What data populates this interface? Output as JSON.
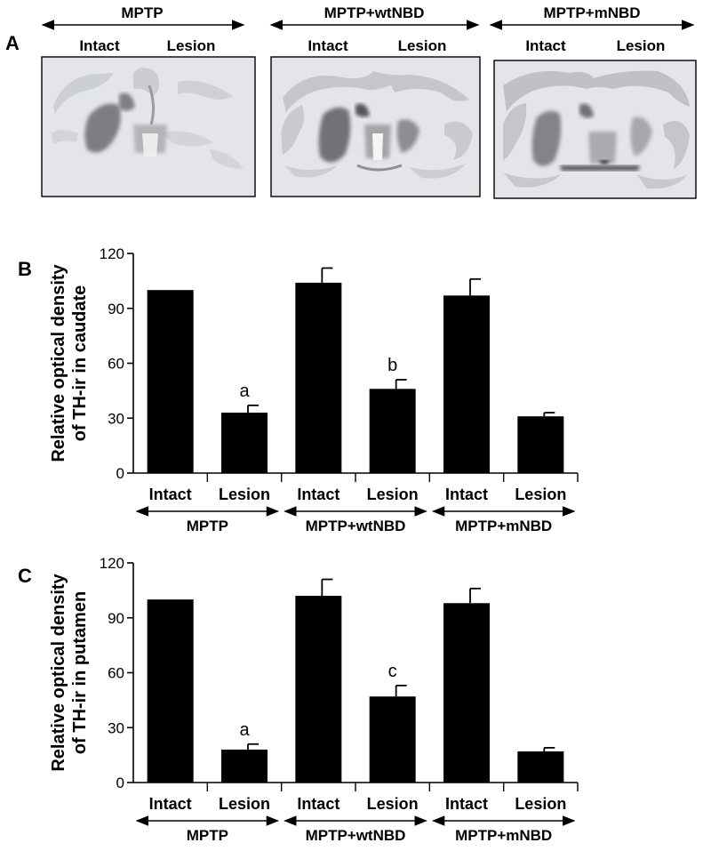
{
  "panel_a": {
    "letter": "A",
    "groups": [
      {
        "name": "MPTP",
        "intact_label": "Intact",
        "lesion_label": "Lesion"
      },
      {
        "name": "MPTP+wtNBD",
        "intact_label": "Intact",
        "lesion_label": "Lesion"
      },
      {
        "name": "MPTP+mNBD",
        "intact_label": "Intact",
        "lesion_label": "Lesion"
      }
    ]
  },
  "chart_data": [
    {
      "type": "bar",
      "panel": "B",
      "ylabel_line1": "Relative optical density",
      "ylabel_line2": "of TH-ir in caudate",
      "ylim": [
        0,
        120
      ],
      "yticks": [
        0,
        30,
        60,
        90,
        120
      ],
      "categories": [
        "Intact",
        "Lesion",
        "Intact",
        "Lesion",
        "Intact",
        "Lesion"
      ],
      "groups": [
        "MPTP",
        "MPTP+wtNBD",
        "MPTP+mNBD"
      ],
      "values": [
        100,
        33,
        104,
        46,
        97,
        31
      ],
      "errors": [
        0,
        4,
        8,
        5,
        9,
        2
      ],
      "annotations": [
        "",
        "a",
        "",
        "b",
        "",
        ""
      ],
      "bar_color": "#000000"
    },
    {
      "type": "bar",
      "panel": "C",
      "ylabel_line1": "Relative optical density",
      "ylabel_line2": "of TH-ir in putamen",
      "ylim": [
        0,
        120
      ],
      "yticks": [
        0,
        30,
        60,
        90,
        120
      ],
      "categories": [
        "Intact",
        "Lesion",
        "Intact",
        "Lesion",
        "Intact",
        "Lesion"
      ],
      "groups": [
        "MPTP",
        "MPTP+wtNBD",
        "MPTP+mNBD"
      ],
      "values": [
        100,
        18,
        102,
        47,
        98,
        17
      ],
      "errors": [
        0,
        3,
        9,
        6,
        8,
        2
      ],
      "annotations": [
        "",
        "a",
        "",
        "c",
        "",
        ""
      ],
      "bar_color": "#000000"
    }
  ]
}
